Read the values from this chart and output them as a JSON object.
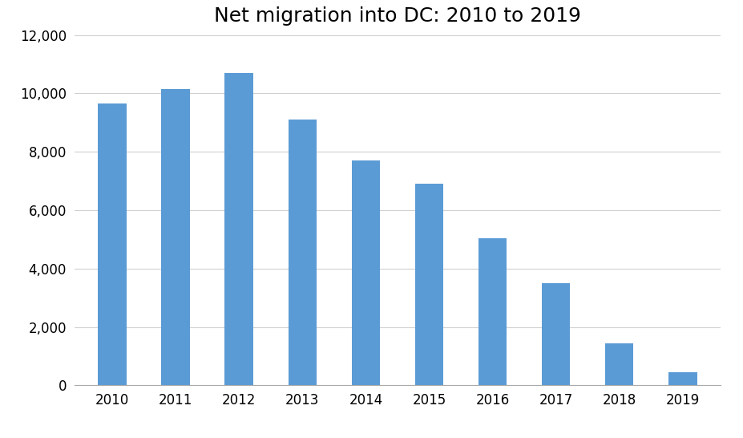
{
  "title": "Net migration into DC: 2010 to 2019",
  "categories": [
    "2010",
    "2011",
    "2012",
    "2013",
    "2014",
    "2015",
    "2016",
    "2017",
    "2018",
    "2019"
  ],
  "values": [
    9650,
    10150,
    10700,
    9100,
    7700,
    6900,
    5050,
    3500,
    1450,
    450
  ],
  "bar_color": "#5B9BD5",
  "ylim": [
    0,
    12000
  ],
  "yticks": [
    0,
    2000,
    4000,
    6000,
    8000,
    10000,
    12000
  ],
  "background_color": "#ffffff",
  "title_fontsize": 18,
  "tick_fontsize": 12,
  "grid_color": "#d0d0d0",
  "bar_width": 0.45
}
